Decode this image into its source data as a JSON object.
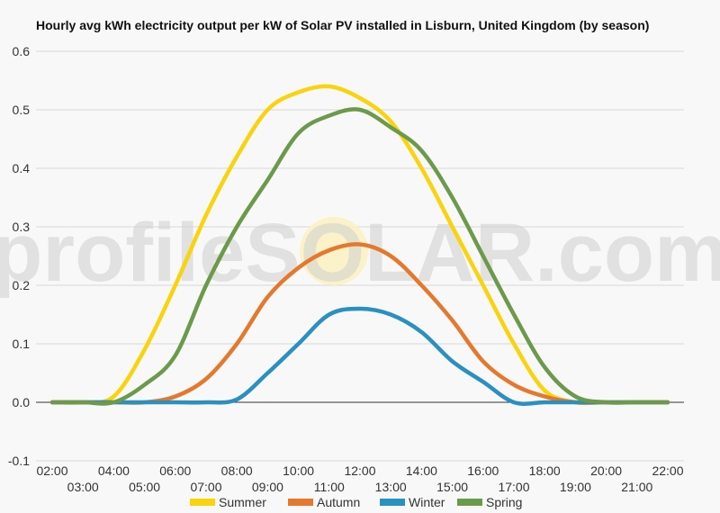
{
  "watermark": "profileSOLAR.com",
  "chart_data": {
    "type": "line",
    "title": "Hourly avg kWh electricity output per kW of Solar PV installed in Lisburn, United Kingdom (by season)",
    "xlabel": "",
    "ylabel": "",
    "x": [
      "02:00",
      "03:00",
      "04:00",
      "05:00",
      "06:00",
      "07:00",
      "08:00",
      "09:00",
      "10:00",
      "11:00",
      "12:00",
      "13:00",
      "14:00",
      "15:00",
      "16:00",
      "17:00",
      "18:00",
      "19:00",
      "20:00",
      "21:00",
      "22:00"
    ],
    "x_ticks_upper": [
      "02:00",
      "04:00",
      "06:00",
      "08:00",
      "10:00",
      "12:00",
      "14:00",
      "16:00",
      "18:00",
      "20:00",
      "22:00"
    ],
    "x_ticks_lower": [
      "03:00",
      "05:00",
      "07:00",
      "09:00",
      "11:00",
      "13:00",
      "15:00",
      "17:00",
      "19:00",
      "21:00"
    ],
    "y_ticks": [
      "0.6",
      "0.5",
      "0.4",
      "0.3",
      "0.2",
      "0.1",
      "0.0",
      "-0.1"
    ],
    "ylim": [
      -0.1,
      0.6
    ],
    "grid": true,
    "legend_position": "bottom",
    "series": [
      {
        "name": "Summer",
        "color": "#f9d30e",
        "values": [
          0,
          0,
          0.01,
          0.09,
          0.2,
          0.32,
          0.42,
          0.5,
          0.53,
          0.54,
          0.52,
          0.48,
          0.4,
          0.3,
          0.2,
          0.1,
          0.02,
          0,
          0,
          0,
          0
        ]
      },
      {
        "name": "Autumn",
        "color": "#e4782d",
        "values": [
          0,
          0,
          0,
          0,
          0.01,
          0.04,
          0.1,
          0.18,
          0.23,
          0.26,
          0.27,
          0.25,
          0.2,
          0.14,
          0.07,
          0.03,
          0.01,
          0,
          0,
          0,
          0
        ]
      },
      {
        "name": "Winter",
        "color": "#2a8fc1",
        "values": [
          0,
          0,
          0,
          0,
          0,
          0,
          0.005,
          0.05,
          0.1,
          0.15,
          0.16,
          0.15,
          0.12,
          0.07,
          0.035,
          0,
          0,
          0,
          0,
          0,
          0
        ]
      },
      {
        "name": "Spring",
        "color": "#6b9a4b",
        "values": [
          0,
          0,
          0,
          0.03,
          0.08,
          0.2,
          0.3,
          0.38,
          0.46,
          0.49,
          0.5,
          0.47,
          0.43,
          0.35,
          0.25,
          0.15,
          0.06,
          0.01,
          0,
          0,
          0
        ]
      }
    ]
  }
}
